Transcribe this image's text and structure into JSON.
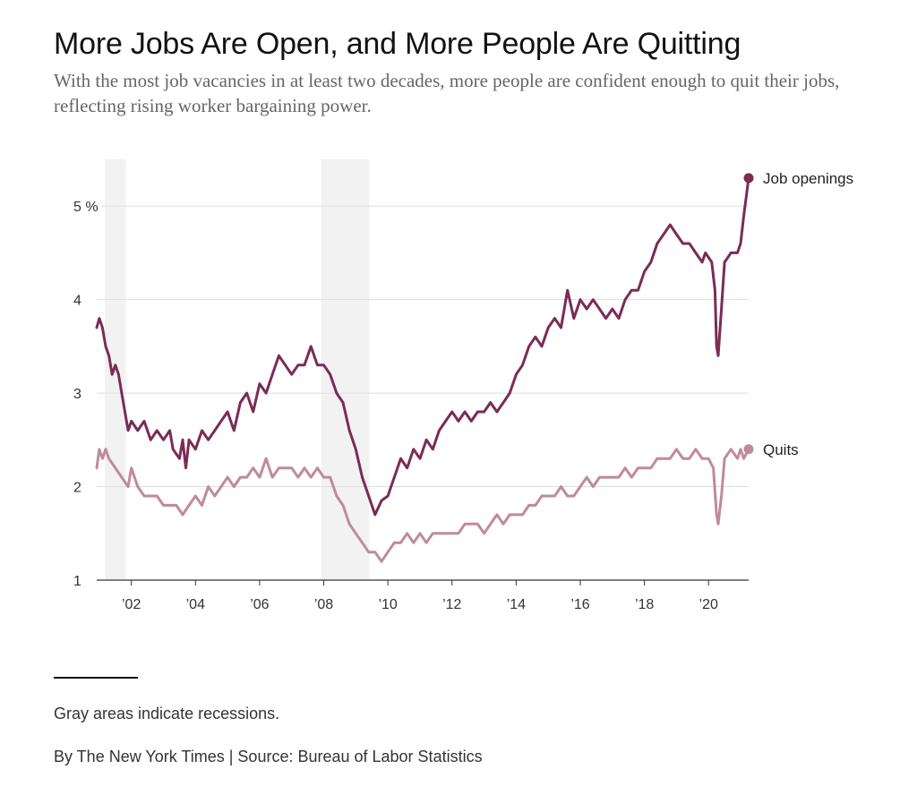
{
  "header": {
    "title": "More Jobs Are Open, and More People Are Quitting",
    "subtitle": "With the most job vacancies in at least two decades, more people are confident enough to quit their jobs, reflecting rising worker bargaining power."
  },
  "footer": {
    "note": "Gray areas indicate recessions.",
    "credit": "By The New York Times | Source: Bureau of Labor Statistics"
  },
  "chart_data": {
    "type": "line",
    "title": "More Jobs Are Open, and More People Are Quitting",
    "xlabel": "",
    "ylabel": "",
    "x_range": [
      2000.92,
      2021.25
    ],
    "ylim": [
      1,
      5.5
    ],
    "grid": true,
    "y_ticks": [
      {
        "value": 5,
        "label": "5 %"
      },
      {
        "value": 4,
        "label": "4"
      },
      {
        "value": 3,
        "label": "3"
      },
      {
        "value": 2,
        "label": "2"
      },
      {
        "value": 1,
        "label": "1"
      }
    ],
    "x_ticks": [
      {
        "value": 2002,
        "label": "’02"
      },
      {
        "value": 2004,
        "label": "’04"
      },
      {
        "value": 2006,
        "label": "’06"
      },
      {
        "value": 2008,
        "label": "’08"
      },
      {
        "value": 2010,
        "label": "’10"
      },
      {
        "value": 2012,
        "label": "’12"
      },
      {
        "value": 2014,
        "label": "’14"
      },
      {
        "value": 2016,
        "label": "’16"
      },
      {
        "value": 2018,
        "label": "’18"
      },
      {
        "value": 2020,
        "label": "’20"
      }
    ],
    "recessions": [
      {
        "start": 2001.17,
        "end": 2001.83
      },
      {
        "start": 2007.92,
        "end": 2009.42
      }
    ],
    "series": [
      {
        "name": "Job openings",
        "color": "#7a2c55",
        "points": [
          [
            2000.92,
            3.7
          ],
          [
            2001.0,
            3.8
          ],
          [
            2001.1,
            3.7
          ],
          [
            2001.2,
            3.5
          ],
          [
            2001.3,
            3.4
          ],
          [
            2001.4,
            3.2
          ],
          [
            2001.5,
            3.3
          ],
          [
            2001.6,
            3.2
          ],
          [
            2001.7,
            3.0
          ],
          [
            2001.8,
            2.8
          ],
          [
            2001.9,
            2.6
          ],
          [
            2002.0,
            2.7
          ],
          [
            2002.2,
            2.6
          ],
          [
            2002.4,
            2.7
          ],
          [
            2002.6,
            2.5
          ],
          [
            2002.8,
            2.6
          ],
          [
            2003.0,
            2.5
          ],
          [
            2003.2,
            2.6
          ],
          [
            2003.3,
            2.4
          ],
          [
            2003.5,
            2.3
          ],
          [
            2003.6,
            2.5
          ],
          [
            2003.7,
            2.2
          ],
          [
            2003.8,
            2.5
          ],
          [
            2004.0,
            2.4
          ],
          [
            2004.2,
            2.6
          ],
          [
            2004.4,
            2.5
          ],
          [
            2004.6,
            2.6
          ],
          [
            2004.8,
            2.7
          ],
          [
            2005.0,
            2.8
          ],
          [
            2005.2,
            2.6
          ],
          [
            2005.4,
            2.9
          ],
          [
            2005.6,
            3.0
          ],
          [
            2005.8,
            2.8
          ],
          [
            2006.0,
            3.1
          ],
          [
            2006.2,
            3.0
          ],
          [
            2006.4,
            3.2
          ],
          [
            2006.6,
            3.4
          ],
          [
            2006.8,
            3.3
          ],
          [
            2007.0,
            3.2
          ],
          [
            2007.2,
            3.3
          ],
          [
            2007.4,
            3.3
          ],
          [
            2007.6,
            3.5
          ],
          [
            2007.8,
            3.3
          ],
          [
            2008.0,
            3.3
          ],
          [
            2008.2,
            3.2
          ],
          [
            2008.4,
            3.0
          ],
          [
            2008.6,
            2.9
          ],
          [
            2008.8,
            2.6
          ],
          [
            2009.0,
            2.4
          ],
          [
            2009.2,
            2.1
          ],
          [
            2009.4,
            1.9
          ],
          [
            2009.6,
            1.7
          ],
          [
            2009.8,
            1.85
          ],
          [
            2010.0,
            1.9
          ],
          [
            2010.2,
            2.1
          ],
          [
            2010.4,
            2.3
          ],
          [
            2010.6,
            2.2
          ],
          [
            2010.8,
            2.4
          ],
          [
            2011.0,
            2.3
          ],
          [
            2011.2,
            2.5
          ],
          [
            2011.4,
            2.4
          ],
          [
            2011.6,
            2.6
          ],
          [
            2011.8,
            2.7
          ],
          [
            2012.0,
            2.8
          ],
          [
            2012.2,
            2.7
          ],
          [
            2012.4,
            2.8
          ],
          [
            2012.6,
            2.7
          ],
          [
            2012.8,
            2.8
          ],
          [
            2013.0,
            2.8
          ],
          [
            2013.2,
            2.9
          ],
          [
            2013.4,
            2.8
          ],
          [
            2013.6,
            2.9
          ],
          [
            2013.8,
            3.0
          ],
          [
            2014.0,
            3.2
          ],
          [
            2014.2,
            3.3
          ],
          [
            2014.4,
            3.5
          ],
          [
            2014.6,
            3.6
          ],
          [
            2014.8,
            3.5
          ],
          [
            2015.0,
            3.7
          ],
          [
            2015.2,
            3.8
          ],
          [
            2015.4,
            3.7
          ],
          [
            2015.6,
            4.1
          ],
          [
            2015.8,
            3.8
          ],
          [
            2016.0,
            4.0
          ],
          [
            2016.2,
            3.9
          ],
          [
            2016.4,
            4.0
          ],
          [
            2016.6,
            3.9
          ],
          [
            2016.8,
            3.8
          ],
          [
            2017.0,
            3.9
          ],
          [
            2017.2,
            3.8
          ],
          [
            2017.4,
            4.0
          ],
          [
            2017.6,
            4.1
          ],
          [
            2017.8,
            4.1
          ],
          [
            2018.0,
            4.3
          ],
          [
            2018.2,
            4.4
          ],
          [
            2018.4,
            4.6
          ],
          [
            2018.6,
            4.7
          ],
          [
            2018.8,
            4.8
          ],
          [
            2019.0,
            4.7
          ],
          [
            2019.2,
            4.6
          ],
          [
            2019.4,
            4.6
          ],
          [
            2019.6,
            4.5
          ],
          [
            2019.8,
            4.4
          ],
          [
            2019.9,
            4.5
          ],
          [
            2020.1,
            4.4
          ],
          [
            2020.2,
            4.1
          ],
          [
            2020.25,
            3.5
          ],
          [
            2020.3,
            3.4
          ],
          [
            2020.4,
            3.9
          ],
          [
            2020.5,
            4.4
          ],
          [
            2020.7,
            4.5
          ],
          [
            2020.9,
            4.5
          ],
          [
            2021.0,
            4.6
          ],
          [
            2021.1,
            4.9
          ],
          [
            2021.25,
            5.3
          ]
        ]
      },
      {
        "name": "Quits",
        "color": "#c08a9c",
        "points": [
          [
            2000.92,
            2.2
          ],
          [
            2001.0,
            2.4
          ],
          [
            2001.1,
            2.3
          ],
          [
            2001.2,
            2.4
          ],
          [
            2001.3,
            2.3
          ],
          [
            2001.5,
            2.2
          ],
          [
            2001.7,
            2.1
          ],
          [
            2001.9,
            2.0
          ],
          [
            2002.0,
            2.2
          ],
          [
            2002.2,
            2.0
          ],
          [
            2002.4,
            1.9
          ],
          [
            2002.6,
            1.9
          ],
          [
            2002.8,
            1.9
          ],
          [
            2003.0,
            1.8
          ],
          [
            2003.2,
            1.8
          ],
          [
            2003.4,
            1.8
          ],
          [
            2003.6,
            1.7
          ],
          [
            2003.8,
            1.8
          ],
          [
            2004.0,
            1.9
          ],
          [
            2004.2,
            1.8
          ],
          [
            2004.4,
            2.0
          ],
          [
            2004.6,
            1.9
          ],
          [
            2004.8,
            2.0
          ],
          [
            2005.0,
            2.1
          ],
          [
            2005.2,
            2.0
          ],
          [
            2005.4,
            2.1
          ],
          [
            2005.6,
            2.1
          ],
          [
            2005.8,
            2.2
          ],
          [
            2006.0,
            2.1
          ],
          [
            2006.2,
            2.3
          ],
          [
            2006.4,
            2.1
          ],
          [
            2006.6,
            2.2
          ],
          [
            2006.8,
            2.2
          ],
          [
            2007.0,
            2.2
          ],
          [
            2007.2,
            2.1
          ],
          [
            2007.4,
            2.2
          ],
          [
            2007.6,
            2.1
          ],
          [
            2007.8,
            2.2
          ],
          [
            2008.0,
            2.1
          ],
          [
            2008.2,
            2.1
          ],
          [
            2008.4,
            1.9
          ],
          [
            2008.6,
            1.8
          ],
          [
            2008.8,
            1.6
          ],
          [
            2009.0,
            1.5
          ],
          [
            2009.2,
            1.4
          ],
          [
            2009.4,
            1.3
          ],
          [
            2009.6,
            1.3
          ],
          [
            2009.8,
            1.2
          ],
          [
            2010.0,
            1.3
          ],
          [
            2010.2,
            1.4
          ],
          [
            2010.4,
            1.4
          ],
          [
            2010.6,
            1.5
          ],
          [
            2010.8,
            1.4
          ],
          [
            2011.0,
            1.5
          ],
          [
            2011.2,
            1.4
          ],
          [
            2011.4,
            1.5
          ],
          [
            2011.6,
            1.5
          ],
          [
            2011.8,
            1.5
          ],
          [
            2012.0,
            1.5
          ],
          [
            2012.2,
            1.5
          ],
          [
            2012.4,
            1.6
          ],
          [
            2012.6,
            1.6
          ],
          [
            2012.8,
            1.6
          ],
          [
            2013.0,
            1.5
          ],
          [
            2013.2,
            1.6
          ],
          [
            2013.4,
            1.7
          ],
          [
            2013.6,
            1.6
          ],
          [
            2013.8,
            1.7
          ],
          [
            2014.0,
            1.7
          ],
          [
            2014.2,
            1.7
          ],
          [
            2014.4,
            1.8
          ],
          [
            2014.6,
            1.8
          ],
          [
            2014.8,
            1.9
          ],
          [
            2015.0,
            1.9
          ],
          [
            2015.2,
            1.9
          ],
          [
            2015.4,
            2.0
          ],
          [
            2015.6,
            1.9
          ],
          [
            2015.8,
            1.9
          ],
          [
            2016.0,
            2.0
          ],
          [
            2016.2,
            2.1
          ],
          [
            2016.4,
            2.0
          ],
          [
            2016.6,
            2.1
          ],
          [
            2016.8,
            2.1
          ],
          [
            2017.0,
            2.1
          ],
          [
            2017.2,
            2.1
          ],
          [
            2017.4,
            2.2
          ],
          [
            2017.6,
            2.1
          ],
          [
            2017.8,
            2.2
          ],
          [
            2018.0,
            2.2
          ],
          [
            2018.2,
            2.2
          ],
          [
            2018.4,
            2.3
          ],
          [
            2018.6,
            2.3
          ],
          [
            2018.8,
            2.3
          ],
          [
            2019.0,
            2.4
          ],
          [
            2019.2,
            2.3
          ],
          [
            2019.4,
            2.3
          ],
          [
            2019.6,
            2.4
          ],
          [
            2019.8,
            2.3
          ],
          [
            2020.0,
            2.3
          ],
          [
            2020.15,
            2.2
          ],
          [
            2020.25,
            1.7
          ],
          [
            2020.3,
            1.6
          ],
          [
            2020.4,
            1.9
          ],
          [
            2020.5,
            2.3
          ],
          [
            2020.7,
            2.4
          ],
          [
            2020.9,
            2.3
          ],
          [
            2021.0,
            2.4
          ],
          [
            2021.1,
            2.3
          ],
          [
            2021.25,
            2.4
          ]
        ]
      }
    ]
  }
}
